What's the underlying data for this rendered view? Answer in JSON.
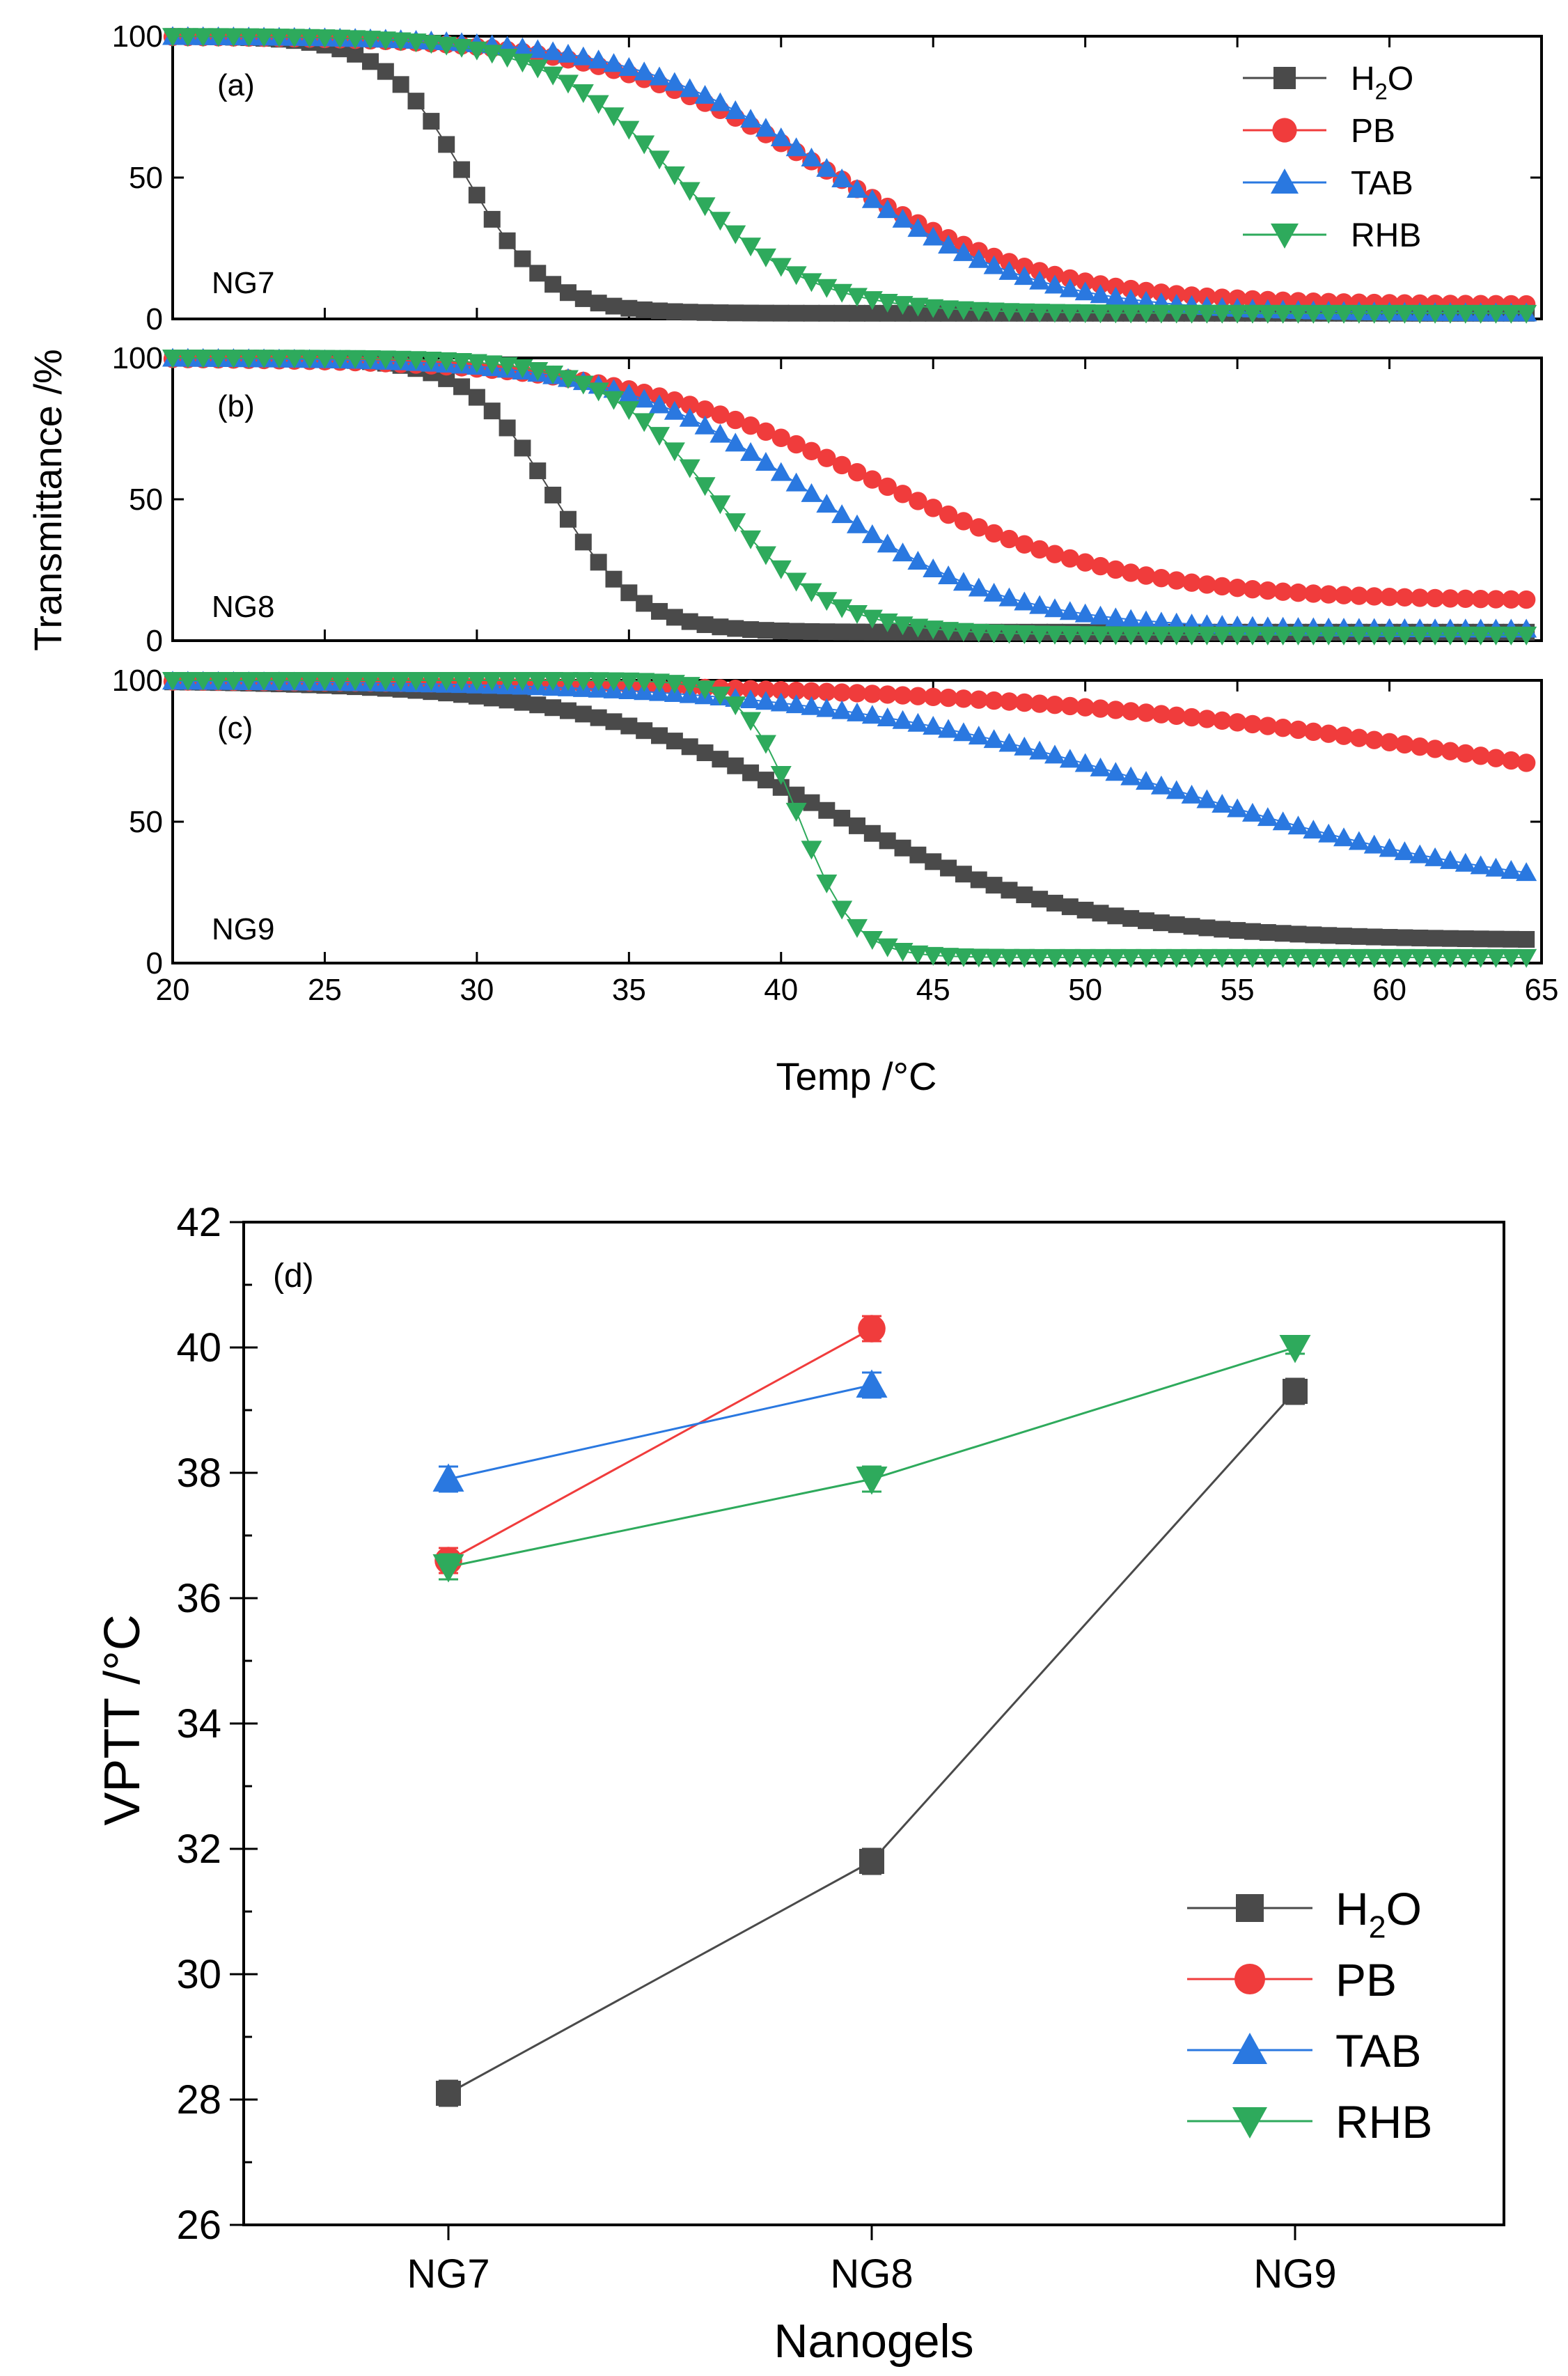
{
  "series_styles": {
    "H2O": {
      "color": "#4a4a4a",
      "marker": "square"
    },
    "PB": {
      "color": "#f03c3c",
      "marker": "circle"
    },
    "TAB": {
      "color": "#2a78e0",
      "marker": "triangle-up"
    },
    "RHB": {
      "color": "#2eaa5c",
      "marker": "triangle-down"
    }
  },
  "top_figure": {
    "shared_ylabel": "Transmittance /%",
    "xlabel": "Temp /°C",
    "x_ticks": [
      "20",
      "25",
      "30",
      "35",
      "40",
      "45",
      "50",
      "55",
      "60",
      "65"
    ],
    "y_ticks": [
      "0",
      "50",
      "100"
    ],
    "legend": [
      {
        "key": "H2O",
        "label_main": "H",
        "label_sub": "2",
        "label_tail": "O"
      },
      {
        "key": "PB",
        "label_main": "PB",
        "label_sub": "",
        "label_tail": ""
      },
      {
        "key": "TAB",
        "label_main": "TAB",
        "label_sub": "",
        "label_tail": ""
      },
      {
        "key": "RHB",
        "label_main": "RHB",
        "label_sub": "",
        "label_tail": ""
      }
    ]
  },
  "bottom_figure": {
    "panel_label": "(d)",
    "xlabel": "Nanogels",
    "ylabel": "VPTT /°C",
    "y_ticks": [
      "26",
      "28",
      "30",
      "32",
      "34",
      "36",
      "38",
      "40",
      "42"
    ],
    "legend": [
      {
        "key": "H2O",
        "label_main": "H",
        "label_sub": "2",
        "label_tail": "O"
      },
      {
        "key": "PB",
        "label_main": "PB",
        "label_sub": "",
        "label_tail": ""
      },
      {
        "key": "TAB",
        "label_main": "TAB",
        "label_sub": "",
        "label_tail": ""
      },
      {
        "key": "RHB",
        "label_main": "RHB",
        "label_sub": "",
        "label_tail": ""
      }
    ]
  },
  "chart_data": [
    {
      "type": "scatter",
      "panel": "(a)",
      "sample": "NG7",
      "xlabel": "Temp /°C",
      "ylabel": "Transmittance /%",
      "xlim": [
        20,
        65
      ],
      "ylim": [
        0,
        100
      ],
      "x_start": 20.0,
      "x_end": 64.5,
      "x_step": 0.5,
      "series": [
        {
          "name": "H2O",
          "transition_temp": 29.6,
          "width": 1.35,
          "top": 100,
          "bottom": 2
        },
        {
          "name": "PB",
          "transition_temp": 41.5,
          "width": 3.6,
          "top": 100,
          "bottom": 5
        },
        {
          "name": "TAB",
          "transition_temp": 41.8,
          "width": 3.3,
          "top": 100,
          "bottom": 2
        },
        {
          "name": "RHB",
          "transition_temp": 36.5,
          "width": 2.2,
          "top": 100,
          "bottom": 2
        }
      ]
    },
    {
      "type": "scatter",
      "panel": "(b)",
      "sample": "NG8",
      "xlabel": "Temp /°C",
      "ylabel": "Transmittance /%",
      "xlim": [
        20,
        65
      ],
      "ylim": [
        0,
        100
      ],
      "x_start": 20.0,
      "x_end": 64.5,
      "x_step": 0.5,
      "series": [
        {
          "name": "H2O",
          "transition_temp": 32.5,
          "width": 1.4,
          "top": 100,
          "bottom": 3
        },
        {
          "name": "PB",
          "transition_temp": 43.0,
          "width": 4.2,
          "top": 100,
          "bottom": 14
        },
        {
          "name": "TAB",
          "transition_temp": 41.0,
          "width": 3.2,
          "top": 100,
          "bottom": 4
        },
        {
          "name": "RHB",
          "transition_temp": 37.8,
          "width": 1.9,
          "top": 100,
          "bottom": 2
        }
      ]
    },
    {
      "type": "scatter",
      "panel": "(c)",
      "sample": "NG9",
      "xlabel": "Temp /°C",
      "ylabel": "Transmittance /%",
      "xlim": [
        20,
        65
      ],
      "ylim": [
        0,
        100
      ],
      "x_start": 20.0,
      "x_end": 64.5,
      "x_step": 0.5,
      "series": [
        {
          "name": "H2O",
          "transition_temp": 41.5,
          "width": 4.2,
          "top": 100,
          "bottom": 8
        },
        {
          "name": "PB",
          "transition_temp": 65.0,
          "width": 9.0,
          "top": 100,
          "bottom": 40
        },
        {
          "name": "TAB",
          "transition_temp": 53.0,
          "width": 6.0,
          "top": 100,
          "bottom": 22
        },
        {
          "name": "RHB",
          "transition_temp": 40.6,
          "width": 0.9,
          "top": 100,
          "bottom": 2
        }
      ]
    },
    {
      "type": "line",
      "panel": "(d)",
      "xlabel": "Nanogels",
      "ylabel": "VPTT /°C",
      "categories": [
        "NG7",
        "NG8",
        "NG9"
      ],
      "ylim": [
        26,
        42
      ],
      "series": [
        {
          "name": "H2O",
          "values": [
            28.1,
            31.8,
            39.3
          ],
          "errors": [
            0.2,
            0.2,
            0.2
          ]
        },
        {
          "name": "PB",
          "values": [
            36.6,
            40.3,
            null
          ],
          "errors": [
            0.2,
            0.2,
            null
          ]
        },
        {
          "name": "TAB",
          "values": [
            37.9,
            39.4,
            null
          ],
          "errors": [
            0.2,
            0.2,
            null
          ]
        },
        {
          "name": "RHB",
          "values": [
            36.5,
            37.9,
            40.0
          ],
          "errors": [
            0.2,
            0.2,
            0.1
          ]
        }
      ]
    }
  ]
}
